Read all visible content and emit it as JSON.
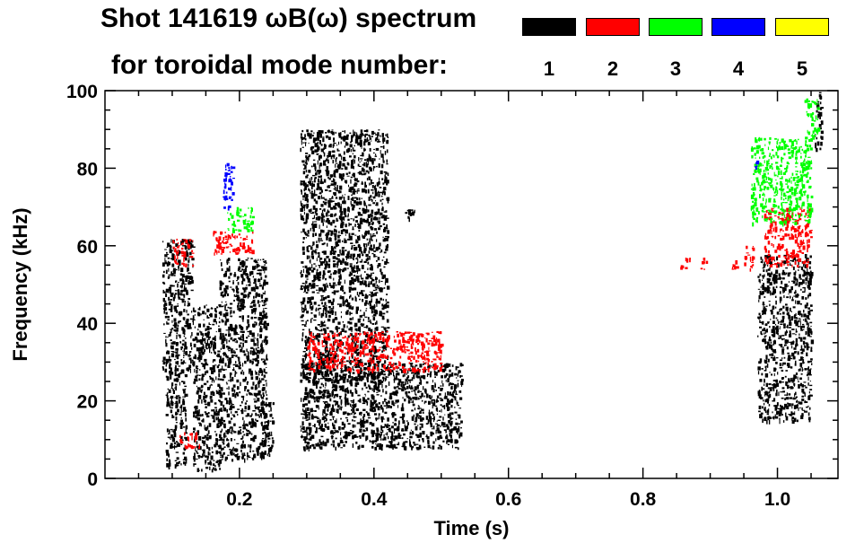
{
  "title": {
    "line1": "Shot 141619 ωB(ω) spectrum",
    "line2": "for toroidal mode number:"
  },
  "legend": [
    {
      "label": "1",
      "color": "#000000"
    },
    {
      "label": "2",
      "color": "#ff0000"
    },
    {
      "label": "3",
      "color": "#00ff00"
    },
    {
      "label": "4",
      "color": "#0000ff"
    },
    {
      "label": "5",
      "color": "#ffff00"
    }
  ],
  "chart_data": {
    "type": "heatmap",
    "xlabel": "Time (s)",
    "ylabel": "Frequency (kHz)",
    "xlim": [
      0.0,
      1.09
    ],
    "ylim": [
      0,
      100
    ],
    "xticks": [
      {
        "value": 0.2,
        "label": "0.2"
      },
      {
        "value": 0.4,
        "label": "0.4"
      },
      {
        "value": 0.6,
        "label": "0.6"
      },
      {
        "value": 0.8,
        "label": "0.8"
      },
      {
        "value": 1.0,
        "label": "1.0"
      }
    ],
    "yticks": [
      {
        "value": 0,
        "label": "0"
      },
      {
        "value": 20,
        "label": "20"
      },
      {
        "value": 40,
        "label": "40"
      },
      {
        "value": 60,
        "label": "60"
      },
      {
        "value": 80,
        "label": "80"
      },
      {
        "value": 100,
        "label": "100"
      }
    ],
    "regions": [
      {
        "mode": 1,
        "t": [
          0.085,
          0.13
        ],
        "f": [
          28,
          62
        ]
      },
      {
        "mode": 1,
        "t": [
          0.09,
          0.12
        ],
        "f": [
          3,
          28
        ]
      },
      {
        "mode": 1,
        "t": [
          0.13,
          0.17
        ],
        "f": [
          2,
          45
        ]
      },
      {
        "mode": 1,
        "t": [
          0.17,
          0.24
        ],
        "f": [
          5,
          57
        ]
      },
      {
        "mode": 1,
        "t": [
          0.23,
          0.25
        ],
        "f": [
          5,
          20
        ]
      },
      {
        "mode": 1,
        "t": [
          0.29,
          0.53
        ],
        "f": [
          8,
          30
        ]
      },
      {
        "mode": 1,
        "t": [
          0.29,
          0.42
        ],
        "f": [
          25,
          90
        ]
      },
      {
        "mode": 1,
        "t": [
          0.445,
          0.46
        ],
        "f": [
          67,
          70
        ]
      },
      {
        "mode": 1,
        "t": [
          0.97,
          1.05
        ],
        "f": [
          15,
          58
        ]
      },
      {
        "mode": 1,
        "t": [
          1.055,
          1.065
        ],
        "f": [
          85,
          100
        ]
      },
      {
        "mode": 2,
        "t": [
          0.1,
          0.13
        ],
        "f": [
          55,
          62
        ]
      },
      {
        "mode": 2,
        "t": [
          0.16,
          0.22
        ],
        "f": [
          58,
          64
        ]
      },
      {
        "mode": 2,
        "t": [
          0.11,
          0.14
        ],
        "f": [
          8,
          12
        ]
      },
      {
        "mode": 2,
        "t": [
          0.3,
          0.5
        ],
        "f": [
          28,
          38
        ]
      },
      {
        "mode": 2,
        "t": [
          0.855,
          0.87
        ],
        "f": [
          54,
          57
        ]
      },
      {
        "mode": 2,
        "t": [
          0.885,
          0.895
        ],
        "f": [
          54,
          57
        ]
      },
      {
        "mode": 2,
        "t": [
          0.93,
          0.94
        ],
        "f": [
          54,
          57
        ]
      },
      {
        "mode": 2,
        "t": [
          0.95,
          0.965
        ],
        "f": [
          54,
          60
        ]
      },
      {
        "mode": 2,
        "t": [
          0.98,
          1.05
        ],
        "f": [
          55,
          70
        ]
      },
      {
        "mode": 3,
        "t": [
          0.18,
          0.22
        ],
        "f": [
          64,
          70
        ]
      },
      {
        "mode": 3,
        "t": [
          0.96,
          1.05
        ],
        "f": [
          66,
          88
        ]
      },
      {
        "mode": 3,
        "t": [
          1.04,
          1.06
        ],
        "f": [
          88,
          98
        ]
      },
      {
        "mode": 4,
        "t": [
          0.175,
          0.19
        ],
        "f": [
          70,
          82
        ]
      },
      {
        "mode": 4,
        "t": [
          0.965,
          0.97
        ],
        "f": [
          80,
          82
        ]
      }
    ],
    "grid": false
  }
}
